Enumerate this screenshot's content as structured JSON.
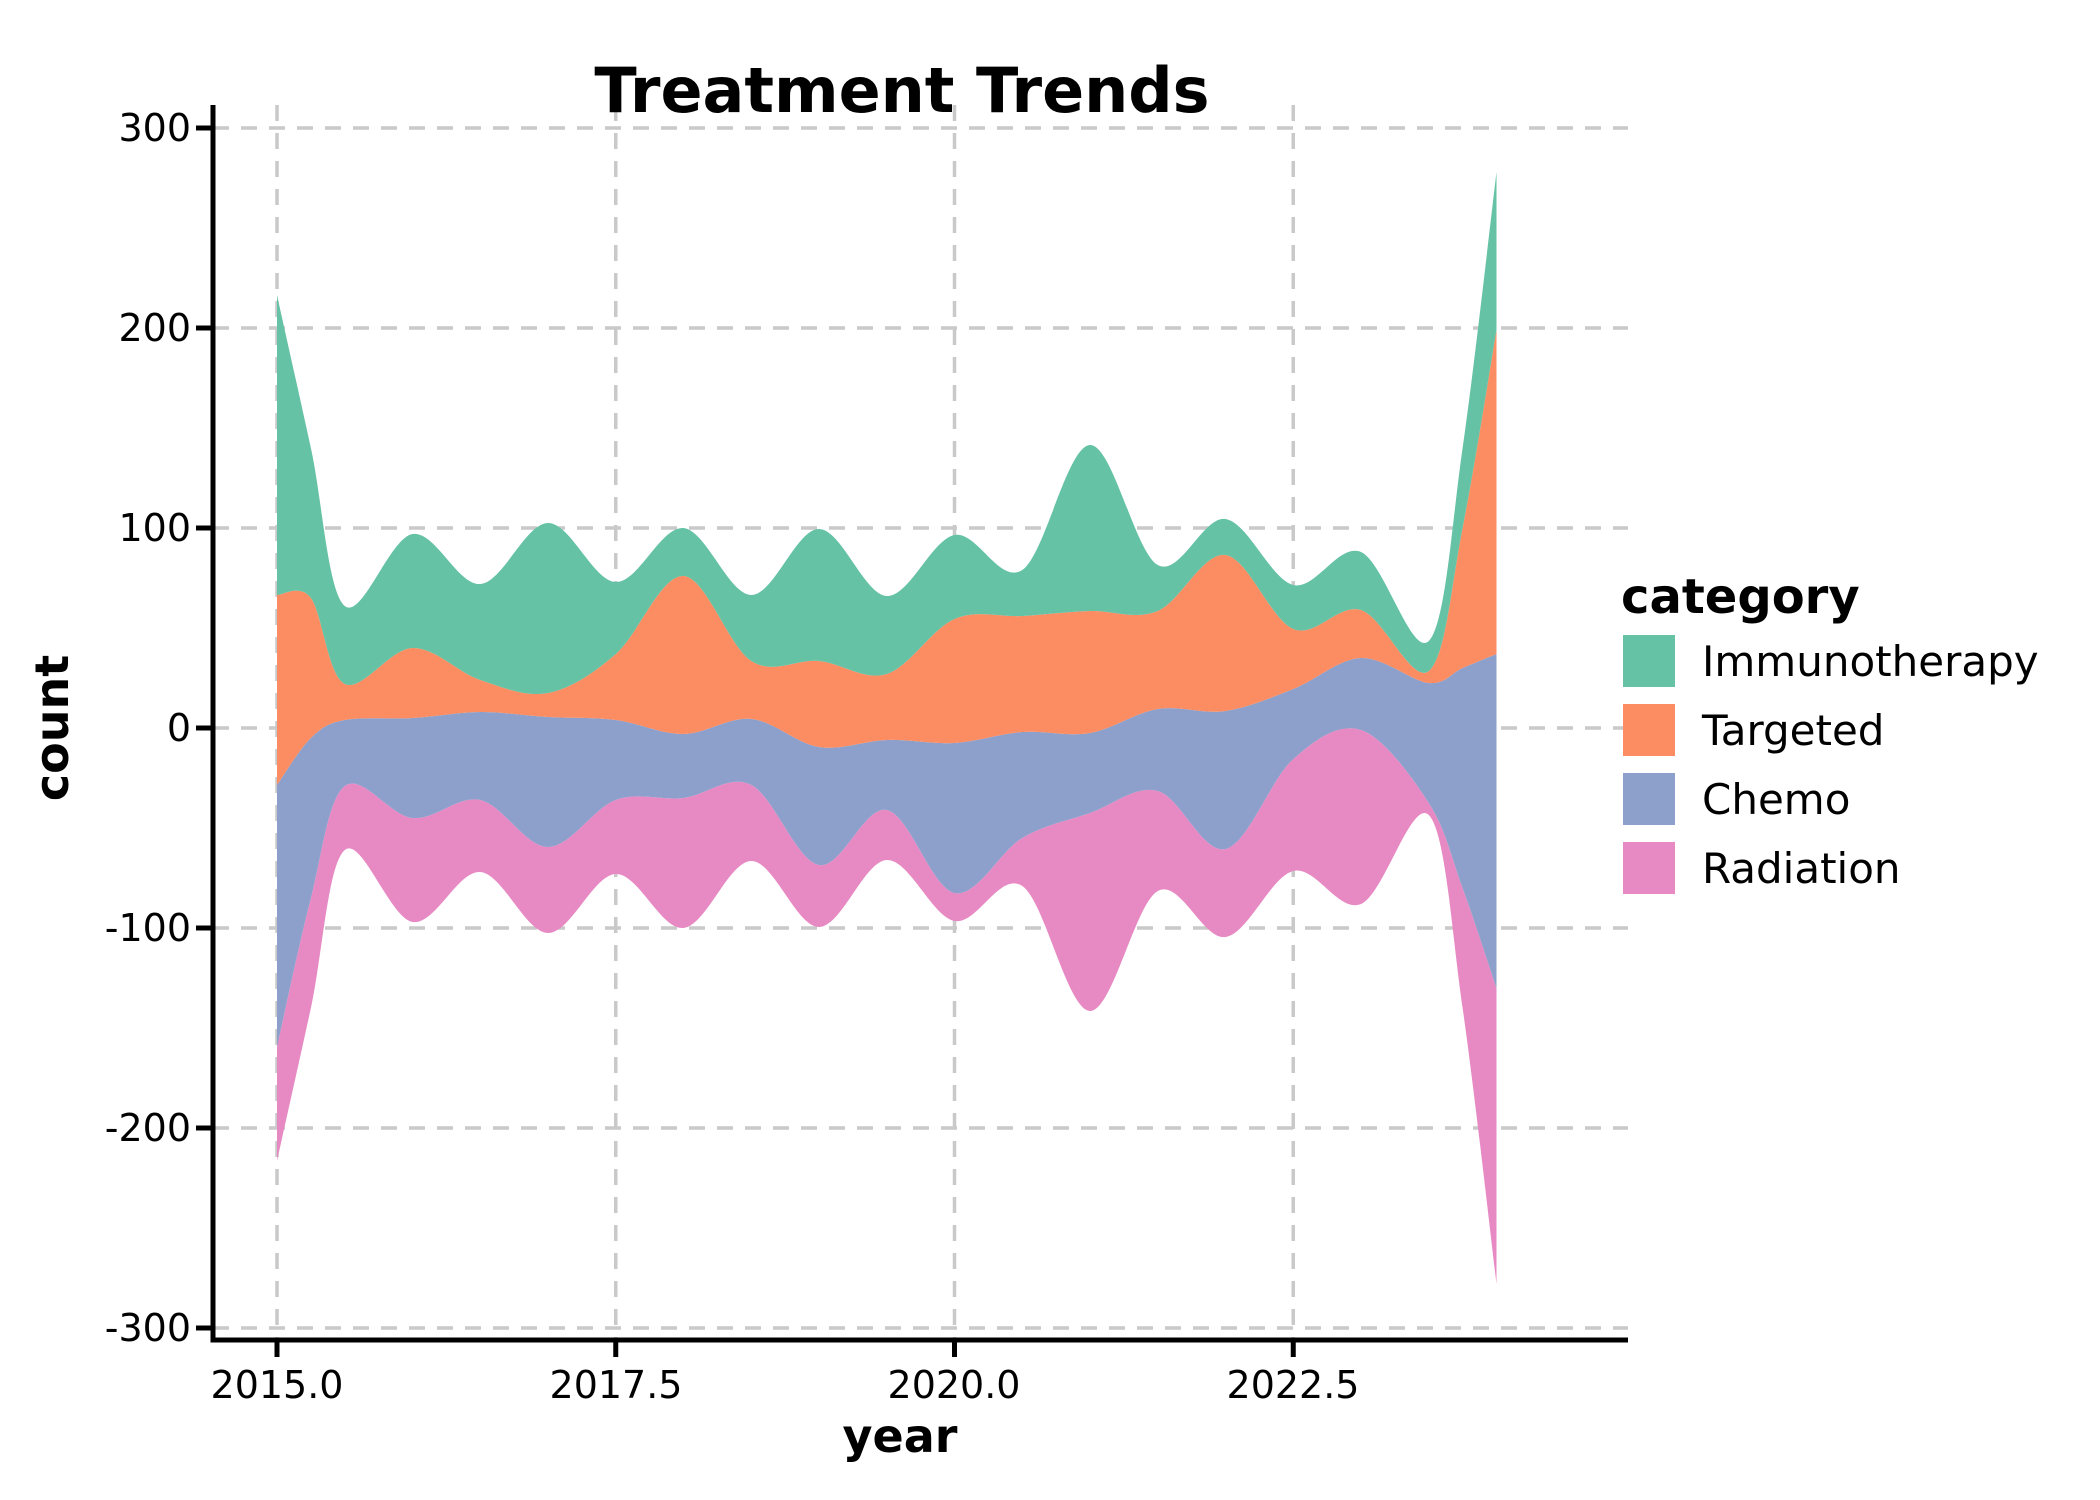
{
  "title": "Treatment Trends",
  "axes": {
    "x": {
      "label": "year",
      "ticks": [
        {
          "value": 2015.0,
          "label": "2015.0"
        },
        {
          "value": 2017.5,
          "label": "2017.5"
        },
        {
          "value": 2020.0,
          "label": "2020.0"
        },
        {
          "value": 2022.5,
          "label": "2022.5"
        }
      ]
    },
    "y": {
      "label": "count",
      "ticks": [
        {
          "value": 300,
          "label": "300"
        },
        {
          "value": 200,
          "label": "200"
        },
        {
          "value": 100,
          "label": "100"
        },
        {
          "value": 0,
          "label": "0"
        },
        {
          "value": -100,
          "label": "-100"
        },
        {
          "value": -200,
          "label": "-200"
        },
        {
          "value": -300,
          "label": "-300"
        }
      ]
    }
  },
  "legend": {
    "title": "category",
    "position": "right"
  },
  "style": {
    "grid_color": "#c9c9c9",
    "spine_color": "#000000",
    "background": "#ffffff"
  },
  "chart_data": {
    "type": "area",
    "variant": "streamgraph-centered",
    "title": "Treatment Trends",
    "xlabel": "year",
    "ylabel": "count",
    "xlim": [
      2014.53,
      2024.9
    ],
    "ylim": [
      -300,
      300
    ],
    "grid": true,
    "legend_position": "right",
    "x": [
      2015,
      2015.25,
      2015.5,
      2016,
      2016.5,
      2017,
      2017.5,
      2018,
      2018.5,
      2019,
      2019.5,
      2020,
      2020.5,
      2021,
      2021.5,
      2022,
      2022.5,
      2023,
      2023.5,
      2023.75,
      2024
    ],
    "series": [
      {
        "name": "Immunotherapy",
        "color": "#66c2a5",
        "values": [
          150,
          75,
          39,
          57,
          48,
          85,
          36,
          24,
          33,
          66,
          39,
          42,
          23,
          83,
          23,
          18,
          22,
          29,
          15,
          40,
          79
        ]
      },
      {
        "name": "Targeted",
        "color": "#fc8d62",
        "values": [
          95,
          70,
          18,
          35,
          16,
          12,
          33,
          79,
          29,
          43,
          33,
          62,
          58,
          61,
          49,
          78,
          30,
          24,
          6,
          70,
          162
        ]
      },
      {
        "name": "Chemo",
        "color": "#8da0cb",
        "values": [
          131,
          80,
          33,
          50,
          44,
          65,
          40,
          32,
          33,
          59,
          35,
          75,
          53,
          40,
          41,
          69,
          35,
          36,
          60,
          110,
          167
        ]
      },
      {
        "name": "Radiation",
        "color": "#e78ac3",
        "values": [
          57,
          55,
          32,
          52,
          36,
          43,
          37,
          65,
          38,
          31,
          25,
          14,
          24,
          99,
          50,
          44,
          56,
          87,
          6,
          60,
          148
        ]
      }
    ]
  }
}
